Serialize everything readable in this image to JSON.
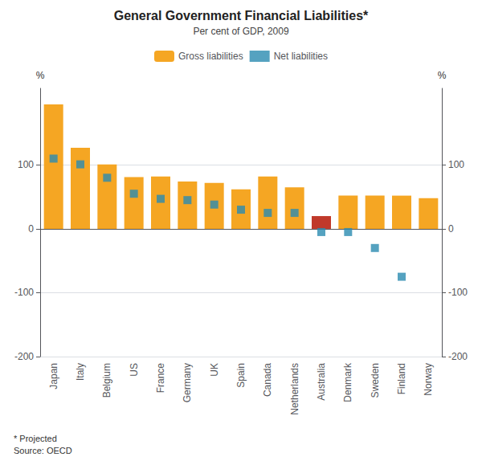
{
  "chart_data": {
    "type": "bar",
    "title": "General Government Financial Liabilities*",
    "subtitle": "Per cent of GDP, 2009",
    "ylabel": "%",
    "y2label": "%",
    "footnote": "* Projected\nSource: OECD",
    "categories": [
      "Japan",
      "Italy",
      "Belgium",
      "US",
      "France",
      "Germany",
      "UK",
      "Spain",
      "Canada",
      "Netherlands",
      "Australia",
      "Denmark",
      "Sweden",
      "Finland",
      "Norway"
    ],
    "series": [
      {
        "name": "Gross liabilities",
        "type": "bar",
        "color": "#F5A623",
        "colors": [
          "#F5A623",
          "#F5A623",
          "#F5A623",
          "#F5A623",
          "#F5A623",
          "#F5A623",
          "#F5A623",
          "#F5A623",
          "#F5A623",
          "#F5A623",
          "#C0392B",
          "#F5A623",
          "#F5A623",
          "#F5A623",
          "#F5A623"
        ],
        "values": [
          195,
          127,
          101,
          81,
          82,
          74,
          72,
          62,
          82,
          65,
          20,
          52,
          52,
          52,
          48
        ]
      },
      {
        "name": "Net liabilities",
        "type": "scatter",
        "marker": "square",
        "color": "#2A8BB0",
        "values": [
          110,
          101,
          80,
          55,
          47,
          45,
          38,
          30,
          25,
          25,
          -5,
          -5,
          -30,
          -75,
          null
        ]
      }
    ],
    "ylim": [
      -200,
      220
    ],
    "yticks": [
      -200,
      -100,
      0,
      100
    ],
    "y2lim": [
      -200,
      220
    ],
    "y2ticks": [
      -200,
      -100,
      0,
      100
    ],
    "grid": true,
    "legend": "top"
  }
}
